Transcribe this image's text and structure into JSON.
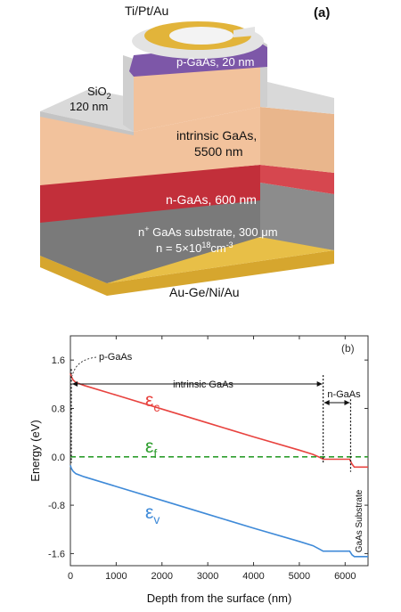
{
  "panel_a": {
    "tag": "(a)",
    "contact_top": "Ti/Pt/Au",
    "oxide_label": "SiO",
    "oxide_sub": "2",
    "oxide_thickness": "120 nm",
    "p_layer": "p-GaAs, 20 nm",
    "intrinsic_line1": "intrinsic GaAs,",
    "intrinsic_line2": "5500 nm",
    "n_layer": "n-GaAs, 600 nm",
    "substrate_pre": "n",
    "substrate_sup": "+",
    "substrate_post": " GaAs substrate, 300 μm",
    "doping_pre": "n = 5×10",
    "doping_exp": "18",
    "doping_unit": "cm",
    "doping_unit_exp": "-3",
    "contact_bottom": "Au-Ge/Ni/Au",
    "colors": {
      "contact": "#e2b43a",
      "oxide": "#d9d9d9",
      "p_gaas": "#7d57a8",
      "intrinsic": "#f2c29c",
      "n_gaas": "#c22f3a",
      "substrate": "#7a7a7a"
    }
  },
  "chart_data": {
    "type": "line",
    "tag": "(b)",
    "xlabel": "Depth from the surface (nm)",
    "ylabel": "Energy (eV)",
    "xlim": [
      0,
      6500
    ],
    "ylim": [
      -1.8,
      2.0
    ],
    "xticks": [
      0,
      1000,
      2000,
      3000,
      4000,
      5000,
      6000
    ],
    "yticks": [
      1.6,
      0.8,
      0.0,
      -0.8,
      -1.6
    ],
    "ytick_labels": [
      "1.6",
      "0.8",
      "0.0",
      "-0.8",
      "-1.6"
    ],
    "series": [
      {
        "name": "Ec",
        "label_main": "ε",
        "label_sub": "c",
        "color": "#e8433f",
        "dashed": false,
        "x": [
          0,
          20,
          60,
          120,
          300,
          1000,
          2000,
          3000,
          4000,
          5000,
          5300,
          5450,
          5520,
          5600,
          6100,
          6150,
          6200,
          6500
        ],
        "y": [
          1.38,
          1.33,
          1.27,
          1.23,
          1.18,
          1.02,
          0.79,
          0.56,
          0.33,
          0.11,
          0.04,
          -0.01,
          -0.04,
          -0.04,
          -0.04,
          -0.12,
          -0.17,
          -0.17
        ]
      },
      {
        "name": "Ef",
        "label_main": "ε",
        "label_sub": "f",
        "color": "#2e9e2e",
        "dashed": true,
        "x": [
          0,
          6500
        ],
        "y": [
          0.0,
          0.0
        ]
      },
      {
        "name": "Ev",
        "label_main": "ε",
        "label_sub": "v",
        "color": "#3f8ad8",
        "dashed": false,
        "x": [
          0,
          20,
          60,
          120,
          300,
          1000,
          2000,
          3000,
          4000,
          5000,
          5300,
          5450,
          5520,
          5600,
          6100,
          6150,
          6200,
          6500
        ],
        "y": [
          -0.14,
          -0.19,
          -0.24,
          -0.28,
          -0.33,
          -0.49,
          -0.72,
          -0.95,
          -1.18,
          -1.4,
          -1.47,
          -1.53,
          -1.56,
          -1.56,
          -1.56,
          -1.62,
          -1.65,
          -1.65
        ]
      }
    ],
    "annotations": {
      "p_gaas": "p-GaAs",
      "intrinsic": "intrinsic GaAs",
      "n_gaas": "n-GaAs",
      "substrate": "GaAs Substrate"
    },
    "boundaries": [
      20,
      5520,
      6120
    ],
    "grid": false,
    "legend": "none"
  }
}
